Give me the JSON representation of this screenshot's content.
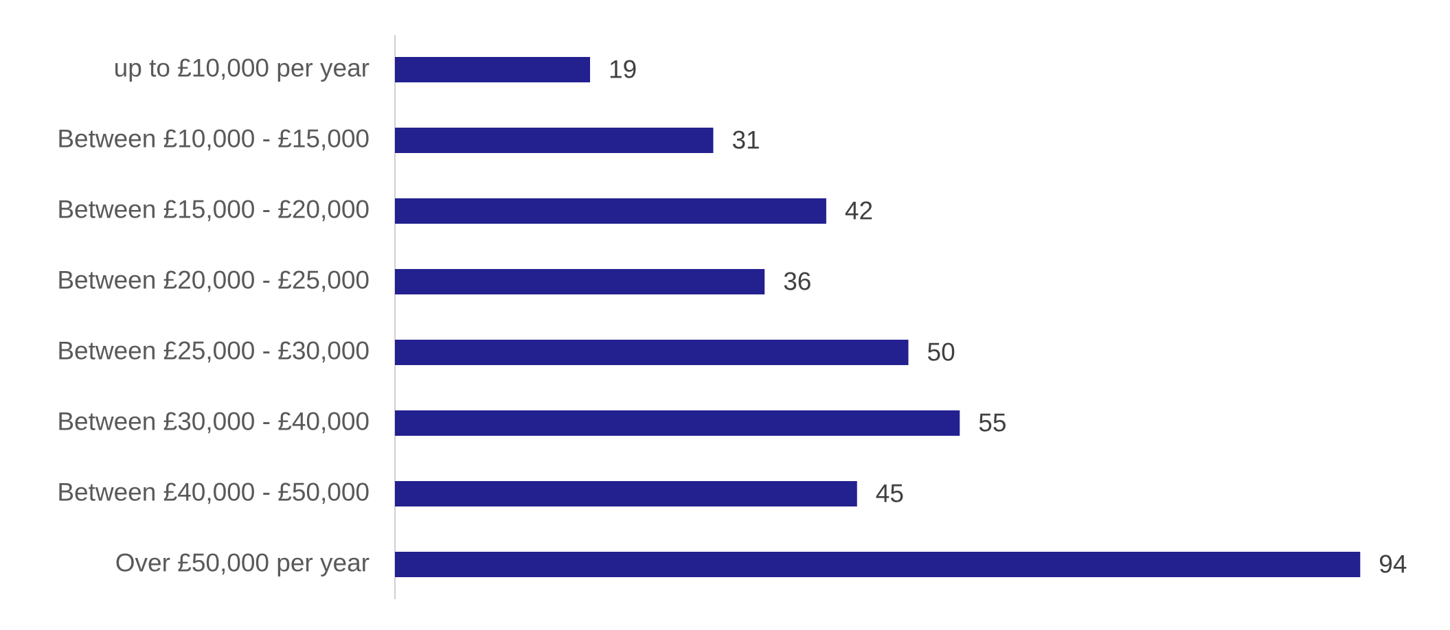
{
  "chart_data": {
    "type": "hbar",
    "categories": [
      "up to £10,000 per year",
      "Between £10,000 - £15,000",
      "Between £15,000 - £20,000",
      "Between £20,000 - £25,000",
      "Between £25,000 - £30,000",
      "Between £30,000 - £40,000",
      "Between £40,000 - £50,000",
      "Over £50,000 per year"
    ],
    "values": [
      19,
      31,
      42,
      36,
      50,
      55,
      45,
      94
    ],
    "color": "#23208f",
    "xlim": [
      0,
      100
    ]
  }
}
